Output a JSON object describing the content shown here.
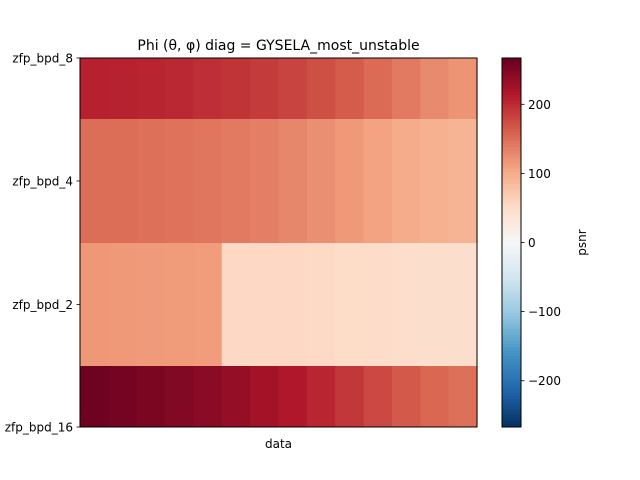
{
  "chart_data": {
    "type": "heatmap",
    "title": "Phi (θ, φ) diag = GYSELA_most_unstable",
    "xlabel": "data",
    "ylabel": "",
    "colorbar_label": "psnr",
    "colormap": "RdBu_r",
    "vmin": -267,
    "vmax": 267,
    "colorbar_ticks": [
      "−200",
      "−100",
      "0",
      "100",
      "200"
    ],
    "colorbar_tick_values": [
      -200,
      -100,
      0,
      100,
      200
    ],
    "rows": [
      {
        "label": "zfp_bpd_8",
        "values": [
          208,
          206,
          204,
          201,
          197,
          193,
          188,
          181,
          172,
          163,
          152,
          140,
          128,
          120
        ]
      },
      {
        "label": "zfp_bpd_4",
        "values": [
          150,
          150,
          148,
          146,
          143,
          140,
          136,
          131,
          124,
          116,
          108,
          100,
          95,
          92
        ]
      },
      {
        "label": "zfp_bpd_2",
        "values": [
          117,
          116,
          115,
          114,
          113,
          55,
          56,
          55,
          54,
          52,
          50,
          49,
          48,
          48
        ]
      },
      {
        "label": "zfp_bpd_16",
        "values": [
          262,
          258,
          253,
          248,
          242,
          235,
          225,
          215,
          203,
          190,
          177,
          165,
          155,
          148
        ]
      }
    ],
    "grid": false
  }
}
